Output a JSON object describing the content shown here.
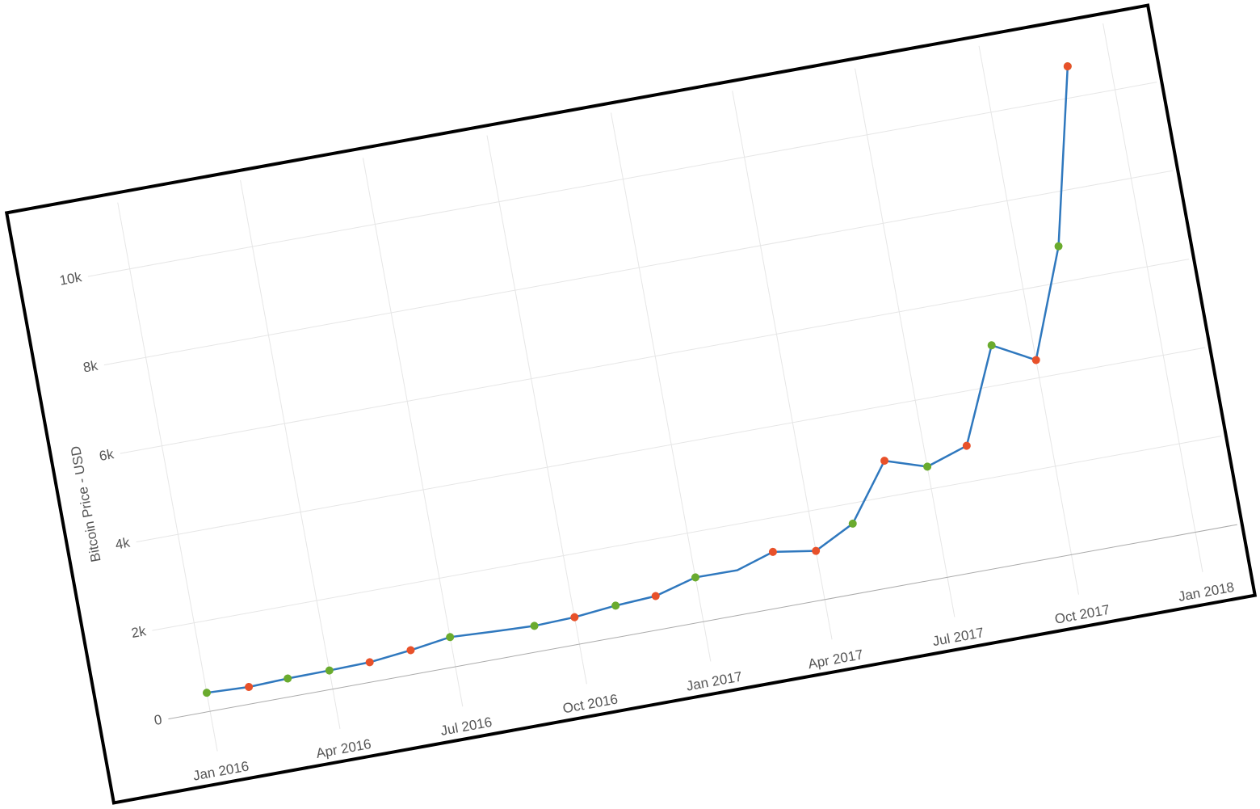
{
  "chart_data": {
    "type": "line",
    "y_label": "Bitcoin Price - USD",
    "series": [
      {
        "color": "#2f78be",
        "x": [
          "2016-01",
          "2016-02",
          "2016-03",
          "2016-04",
          "2016-05",
          "2016-06",
          "2016-07",
          "2016-08",
          "2016-09",
          "2016-10",
          "2016-11",
          "2016-12",
          "2017-01",
          "2017-02",
          "2017-03",
          "2017-04",
          "2017-05",
          "2017-06",
          "2017-07",
          "2017-08",
          "2017-09",
          "2017-10",
          "2017-11",
          "2017-12"
        ],
        "values": [
          420,
          380,
          410,
          420,
          440,
          540,
          670,
          620,
          580,
          610,
          700,
          750,
          1000,
          990,
          1250,
          1100,
          1550,
          2800,
          2500,
          2800,
          4900,
          4400,
          6800,
          10700
        ]
      },
      {
        "color": "#6aab2e",
        "marker": true,
        "x": [
          "2016-01",
          "2016-03",
          "2016-04",
          "2016-07",
          "2016-09",
          "2016-11",
          "2017-01",
          "2017-05",
          "2017-07",
          "2017-09",
          "2017-11",
          "2017-12"
        ],
        "values": [
          420,
          410,
          420,
          670,
          580,
          700,
          1000,
          1550,
          2500,
          4900,
          6800,
          10700
        ]
      },
      {
        "color": "#e8512a",
        "marker": true,
        "x": [
          "2016-02",
          "2016-05",
          "2016-06",
          "2016-10",
          "2016-12",
          "2017-03",
          "2017-04",
          "2017-06",
          "2017-08",
          "2017-10",
          "2017-12"
        ],
        "values": [
          380,
          440,
          540,
          610,
          750,
          1250,
          1100,
          2800,
          2800,
          4400,
          10700
        ]
      }
    ],
    "xlim": [
      "2015-12",
      "2018-02"
    ],
    "xticks": [
      {
        "value": "2016-01",
        "label": "Jan 2016"
      },
      {
        "value": "2016-04",
        "label": "Apr 2016"
      },
      {
        "value": "2016-07",
        "label": "Jul 2016"
      },
      {
        "value": "2016-10",
        "label": "Oct 2016"
      },
      {
        "value": "2017-01",
        "label": "Jan 2017"
      },
      {
        "value": "2017-04",
        "label": "Apr 2017"
      },
      {
        "value": "2017-07",
        "label": "Jul 2017"
      },
      {
        "value": "2017-10",
        "label": "Oct 2017"
      },
      {
        "value": "2018-01",
        "label": "Jan 2018"
      }
    ],
    "ylim": [
      -900,
      11500
    ],
    "yticks": [
      0,
      {
        "value": 2000,
        "label": "2k"
      },
      {
        "value": 4000,
        "label": "4k"
      },
      {
        "value": 6000,
        "label": "6k"
      },
      {
        "value": 8000,
        "label": "8k"
      },
      {
        "value": 10000,
        "label": "10k"
      }
    ],
    "grid": true
  }
}
